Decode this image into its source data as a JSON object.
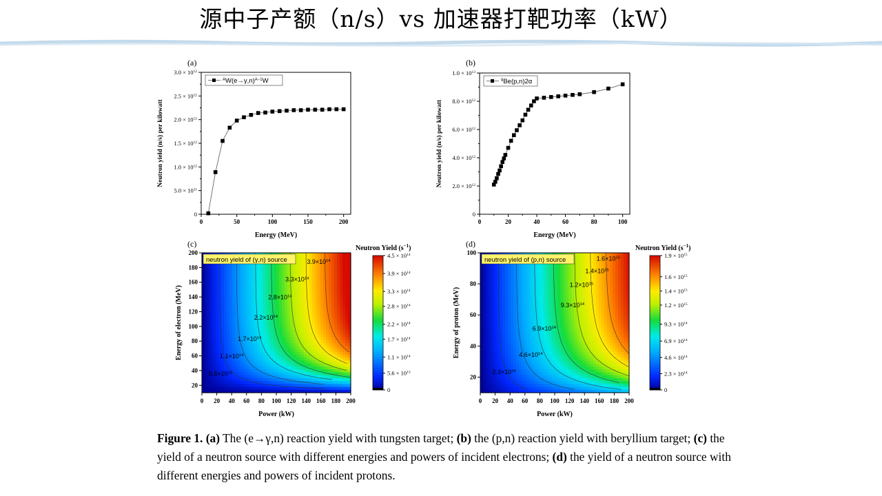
{
  "slide": {
    "title": "源中子产额（n/s）vs 加速器打靶功率（kW）"
  },
  "caption": {
    "fig_label": "Figure 1.",
    "parts": [
      {
        "bold": "(a)",
        "text": " The (e→γ,n) reaction yield with tungsten target; "
      },
      {
        "bold": "(b)",
        "text": " the (p,n) reaction yield with beryllium target; "
      },
      {
        "bold": "(c)",
        "text": " the yield of a neutron source with different energies and powers of incident electrons; "
      },
      {
        "bold": "(d)",
        "text": " the yield of a neutron source with different energies and powers of incident protons."
      }
    ]
  },
  "chart_data": [
    {
      "panel": "(a)",
      "type": "scatter",
      "xlabel": "Energy (MeV)",
      "ylabel": "Neutron yield (n/s) per kilowatt",
      "xlim": [
        0,
        210
      ],
      "ylim": [
        0,
        3000000000000.0
      ],
      "xticks": [
        0,
        50,
        100,
        150,
        200
      ],
      "xtick_labels": [
        "0",
        "50",
        "100",
        "150",
        "200"
      ],
      "yticks": [
        0,
        500000000000.0,
        1000000000000.0,
        1500000000000.0,
        2000000000000.0,
        2500000000000.0,
        3000000000000.0
      ],
      "ytick_base": [
        "0",
        "5.0 × 10",
        "1.0 × 10",
        "1.5 × 10",
        "2.0 × 10",
        "2.5 × 10",
        "3.0 × 10"
      ],
      "ytick_exp": [
        "",
        "11",
        "12",
        "12",
        "12",
        "12",
        "12"
      ],
      "legend": {
        "base": "W(e→γ,n)",
        "sup1": "A",
        "sup2": "A−1",
        "tail": "W",
        "position": "top-left"
      },
      "x": [
        10,
        20,
        30,
        40,
        50,
        60,
        70,
        80,
        90,
        100,
        110,
        120,
        130,
        140,
        150,
        160,
        170,
        180,
        190,
        200
      ],
      "y": [
        20000000000.0,
        890000000000.0,
        1550000000000.0,
        1830000000000.0,
        1980000000000.0,
        2050000000000.0,
        2100000000000.0,
        2140000000000.0,
        2150000000000.0,
        2170000000000.0,
        2180000000000.0,
        2190000000000.0,
        2200000000000.0,
        2200000000000.0,
        2210000000000.0,
        2210000000000.0,
        2210000000000.0,
        2220000000000.0,
        2220000000000.0,
        2220000000000.0
      ]
    },
    {
      "panel": "(b)",
      "type": "scatter",
      "xlabel": "Energy (MeV)",
      "ylabel": "Neutron yield (n/s) per kilowatt",
      "xlim": [
        0,
        105
      ],
      "ylim": [
        0,
        10000000000000.0
      ],
      "xticks": [
        0,
        20,
        40,
        60,
        80,
        100
      ],
      "xtick_labels": [
        "0",
        "20",
        "40",
        "60",
        "80",
        "100"
      ],
      "yticks": [
        0,
        2000000000000.0,
        4000000000000.0,
        6000000000000.0,
        8000000000000.0,
        10000000000000.0
      ],
      "ytick_base": [
        "0",
        "2.0 × 10",
        "4.0 × 10",
        "6.0 × 10",
        "8.0 × 10",
        "1.0 × 10"
      ],
      "ytick_exp": [
        "",
        "12",
        "12",
        "12",
        "12",
        "13"
      ],
      "legend": {
        "base": "Be(p,n)2α",
        "sup1": "9",
        "position": "top-left"
      },
      "x": [
        10,
        11,
        12,
        13,
        14,
        15,
        16,
        17,
        18,
        20,
        22,
        24,
        26,
        28,
        30,
        32,
        34,
        36,
        38,
        40,
        45,
        50,
        55,
        60,
        65,
        70,
        80,
        90,
        100
      ],
      "y": [
        2100000000000.0,
        2300000000000.0,
        2550000000000.0,
        2850000000000.0,
        3100000000000.0,
        3400000000000.0,
        3700000000000.0,
        3950000000000.0,
        4200000000000.0,
        4700000000000.0,
        5200000000000.0,
        5600000000000.0,
        5950000000000.0,
        6300000000000.0,
        6650000000000.0,
        7050000000000.0,
        7400000000000.0,
        7700000000000.0,
        8000000000000.0,
        8200000000000.0,
        8250000000000.0,
        8300000000000.0,
        8350000000000.0,
        8400000000000.0,
        8450000000000.0,
        8500000000000.0,
        8650000000000.0,
        8900000000000.0,
        9200000000000.0
      ]
    },
    {
      "panel": "(c)",
      "type": "heatmap",
      "xlabel": "Power (kW)",
      "ylabel": "Energy of electron (MeV)",
      "xlim": [
        0,
        200
      ],
      "ylim": [
        10,
        200
      ],
      "xticks": [
        0,
        20,
        40,
        60,
        80,
        100,
        120,
        140,
        160,
        180,
        200
      ],
      "yticks": [
        20,
        40,
        60,
        80,
        100,
        120,
        140,
        160,
        180,
        200
      ],
      "inset_label": "neutron yield of (γ,n) source",
      "colorbar": {
        "title": "Neutron Yield (s",
        "title_sup": "−1",
        "title_close": ")",
        "range": [
          0,
          450000000000000.0
        ],
        "ticks": [
          0,
          56000000000000.0,
          110000000000000.0,
          170000000000000.0,
          220000000000000.0,
          280000000000000.0,
          330000000000000.0,
          390000000000000.0,
          450000000000000.0
        ],
        "tick_base": [
          "0",
          "5.6 × 10",
          "1.1 × 10",
          "1.7 × 10",
          "2.2 × 10",
          "2.8 × 10",
          "3.3 × 10",
          "3.9 × 10",
          "4.5 × 10"
        ],
        "tick_exp": [
          "",
          "13",
          "14",
          "14",
          "14",
          "14",
          "14",
          "14",
          "14"
        ]
      },
      "contour_levels": [
        56000000000000.0,
        110000000000000.0,
        170000000000000.0,
        220000000000000.0,
        280000000000000.0,
        330000000000000.0,
        390000000000000.0
      ],
      "contour_labels": [
        {
          "base": "5.6×10",
          "exp": "13",
          "x": 25,
          "y": 33
        },
        {
          "base": "1.1×10",
          "exp": "14",
          "x": 40,
          "y": 57
        },
        {
          "base": "1.7×10",
          "exp": "14",
          "x": 64,
          "y": 80
        },
        {
          "base": "2.2×10",
          "exp": "14",
          "x": 86,
          "y": 109
        },
        {
          "base": "2.8×10",
          "exp": "14",
          "x": 105,
          "y": 137
        },
        {
          "base": "3.3×10",
          "exp": "14",
          "x": 128,
          "y": 161
        },
        {
          "base": "3.9×10",
          "exp": "14",
          "x": 157,
          "y": 185
        }
      ]
    },
    {
      "panel": "(d)",
      "type": "heatmap",
      "xlabel": "Power (kW)",
      "ylabel": "Energy of proton (MeV)",
      "xlim": [
        0,
        200
      ],
      "ylim": [
        10,
        100
      ],
      "xticks": [
        0,
        20,
        40,
        60,
        80,
        100,
        120,
        140,
        160,
        180,
        200
      ],
      "yticks": [
        20,
        40,
        60,
        80,
        100
      ],
      "inset_label": "neutron yield of (p,n) source",
      "colorbar": {
        "title": "Neutron Yield (s",
        "title_sup": "−1",
        "title_close": ")",
        "range": [
          0,
          1900000000000000.0
        ],
        "ticks": [
          0,
          230000000000000.0,
          460000000000000.0,
          690000000000000.0,
          930000000000000.0,
          1200000000000000.0,
          1400000000000000.0,
          1600000000000000.0,
          1900000000000000.0
        ],
        "tick_base": [
          "0",
          "2.3 × 10",
          "4.6 × 10",
          "6.9 × 10",
          "9.3 × 10",
          "1.2 × 10",
          "1.4 × 10",
          "1.6 × 10",
          "1.9 × 10"
        ],
        "tick_exp": [
          "",
          "14",
          "14",
          "14",
          "14",
          "15",
          "15",
          "15",
          "15"
        ]
      },
      "contour_levels": [
        230000000000000.0,
        460000000000000.0,
        690000000000000.0,
        930000000000000.0,
        1200000000000000.0,
        1400000000000000.0,
        1600000000000000.0
      ],
      "contour_labels": [
        {
          "base": "2.3×10",
          "exp": "14",
          "x": 32,
          "y": 22
        },
        {
          "base": "4.6×10",
          "exp": "14",
          "x": 68,
          "y": 33
        },
        {
          "base": "6.9×10",
          "exp": "14",
          "x": 86,
          "y": 50
        },
        {
          "base": "9.3×10",
          "exp": "14",
          "x": 124,
          "y": 65
        },
        {
          "base": "1.2×10",
          "exp": "15",
          "x": 136,
          "y": 78
        },
        {
          "base": "1.4×10",
          "exp": "15",
          "x": 157,
          "y": 87
        },
        {
          "base": "1.6×10",
          "exp": "15",
          "x": 172,
          "y": 95
        }
      ]
    }
  ]
}
